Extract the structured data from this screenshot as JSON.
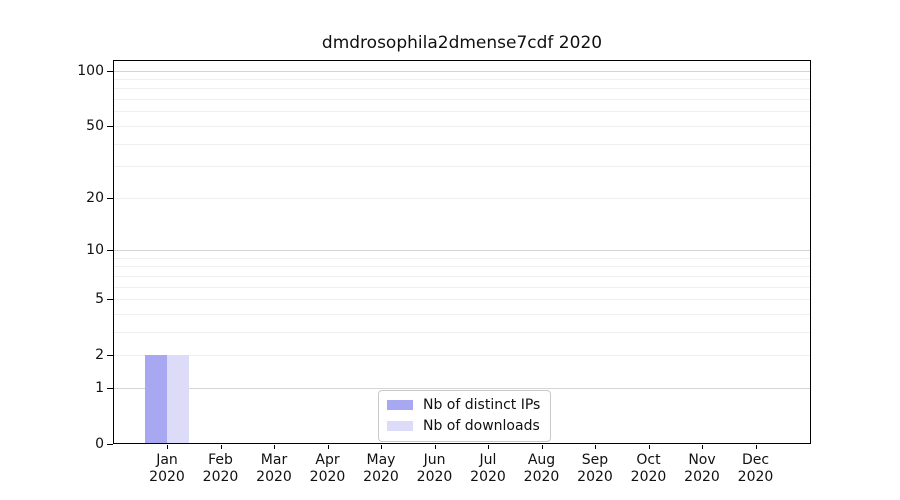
{
  "title": "dmdrosophila2dmense7cdf 2020",
  "chart_data": {
    "type": "bar",
    "title": "dmdrosophila2dmense7cdf 2020",
    "categories": [
      {
        "month": "Jan",
        "year": "2020"
      },
      {
        "month": "Feb",
        "year": "2020"
      },
      {
        "month": "Mar",
        "year": "2020"
      },
      {
        "month": "Apr",
        "year": "2020"
      },
      {
        "month": "May",
        "year": "2020"
      },
      {
        "month": "Jun",
        "year": "2020"
      },
      {
        "month": "Jul",
        "year": "2020"
      },
      {
        "month": "Aug",
        "year": "2020"
      },
      {
        "month": "Sep",
        "year": "2020"
      },
      {
        "month": "Oct",
        "year": "2020"
      },
      {
        "month": "Nov",
        "year": "2020"
      },
      {
        "month": "Dec",
        "year": "2020"
      }
    ],
    "series": [
      {
        "name": "Nb of distinct IPs",
        "color": "#a8a8f2",
        "values": [
          2,
          0,
          0,
          0,
          0,
          0,
          0,
          0,
          0,
          0,
          0,
          0
        ]
      },
      {
        "name": "Nb of downloads",
        "color": "#dcdcf8",
        "values": [
          2,
          0,
          0,
          0,
          0,
          0,
          0,
          0,
          0,
          0,
          0,
          0
        ]
      }
    ],
    "xlabel": "",
    "ylabel": "",
    "yscale": "log1p",
    "ylim": [
      0,
      114
    ],
    "yticks": [
      0,
      1,
      2,
      5,
      10,
      20,
      50,
      100
    ],
    "gridlines": {
      "minor": [
        2,
        3,
        4,
        5,
        6,
        7,
        8,
        9,
        20,
        30,
        40,
        50,
        60,
        70,
        80,
        90
      ],
      "major": [
        1,
        10,
        100
      ]
    },
    "grid": true,
    "legend_position": "lower center"
  }
}
